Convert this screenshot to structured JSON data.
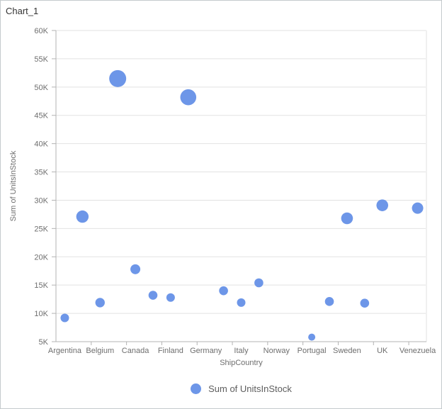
{
  "window": {
    "title": "Chart_1"
  },
  "colors": {
    "bubble": "#6d96e8",
    "axis_line": "#b3b3b3",
    "gridline": "#e2e2e2",
    "plot_border": "#f0f0f0",
    "tick_label": "#6e6e6e",
    "axis_title": "#6e6e6e",
    "title_text": "#333333",
    "legend_text": "#5e5e5e",
    "frame_border": "#c5cacd"
  },
  "chart_data": {
    "type": "scatter",
    "subtype": "bubble",
    "title": "Chart_1",
    "xlabel": "ShipCountry",
    "ylabel": "Sum of UnitsInStock",
    "categories": [
      "Argentina",
      "Belgium",
      "Canada",
      "Finland",
      "Germany",
      "Italy",
      "Norway",
      "Portugal",
      "Sweden",
      "UK",
      "Venezuela"
    ],
    "x_unit_note": "x = index of labeled category (0=Argentina ... 10=Venezuela); half values are unlabeled midpoints between labeled ticks",
    "y_axis": {
      "min": 5000,
      "max": 60000,
      "step": 5000,
      "tick_format": "K"
    },
    "y_tick_labels": [
      "5K",
      "10K",
      "15K",
      "20K",
      "25K",
      "30K",
      "35K",
      "40K",
      "45K",
      "50K",
      "55K",
      "60K"
    ],
    "grid": "horizontal-only",
    "legend": {
      "position": "bottom",
      "items": [
        {
          "label": "Sum of UnitsInStock",
          "color": "#6d96e8"
        }
      ]
    },
    "series": [
      {
        "name": "Sum of UnitsInStock",
        "points": [
          {
            "x": 0.0,
            "y": 9200,
            "r": 6
          },
          {
            "x": 0.5,
            "y": 27100,
            "r": 8.7
          },
          {
            "x": 1.0,
            "y": 11900,
            "r": 6.7
          },
          {
            "x": 1.5,
            "y": 51500,
            "r": 12
          },
          {
            "x": 2.0,
            "y": 17800,
            "r": 7
          },
          {
            "x": 2.5,
            "y": 13200,
            "r": 6.3
          },
          {
            "x": 3.0,
            "y": 12800,
            "r": 6
          },
          {
            "x": 3.5,
            "y": 48200,
            "r": 11.3
          },
          {
            "x": 4.5,
            "y": 14000,
            "r": 6.3
          },
          {
            "x": 5.0,
            "y": 11900,
            "r": 6
          },
          {
            "x": 5.5,
            "y": 15400,
            "r": 6.3
          },
          {
            "x": 7.0,
            "y": 5800,
            "r": 5
          },
          {
            "x": 7.5,
            "y": 12100,
            "r": 6.3
          },
          {
            "x": 8.0,
            "y": 26800,
            "r": 8.3
          },
          {
            "x": 8.5,
            "y": 11800,
            "r": 6.3
          },
          {
            "x": 9.0,
            "y": 29100,
            "r": 8.3
          },
          {
            "x": 10.0,
            "y": 28600,
            "r": 8
          }
        ]
      }
    ]
  }
}
